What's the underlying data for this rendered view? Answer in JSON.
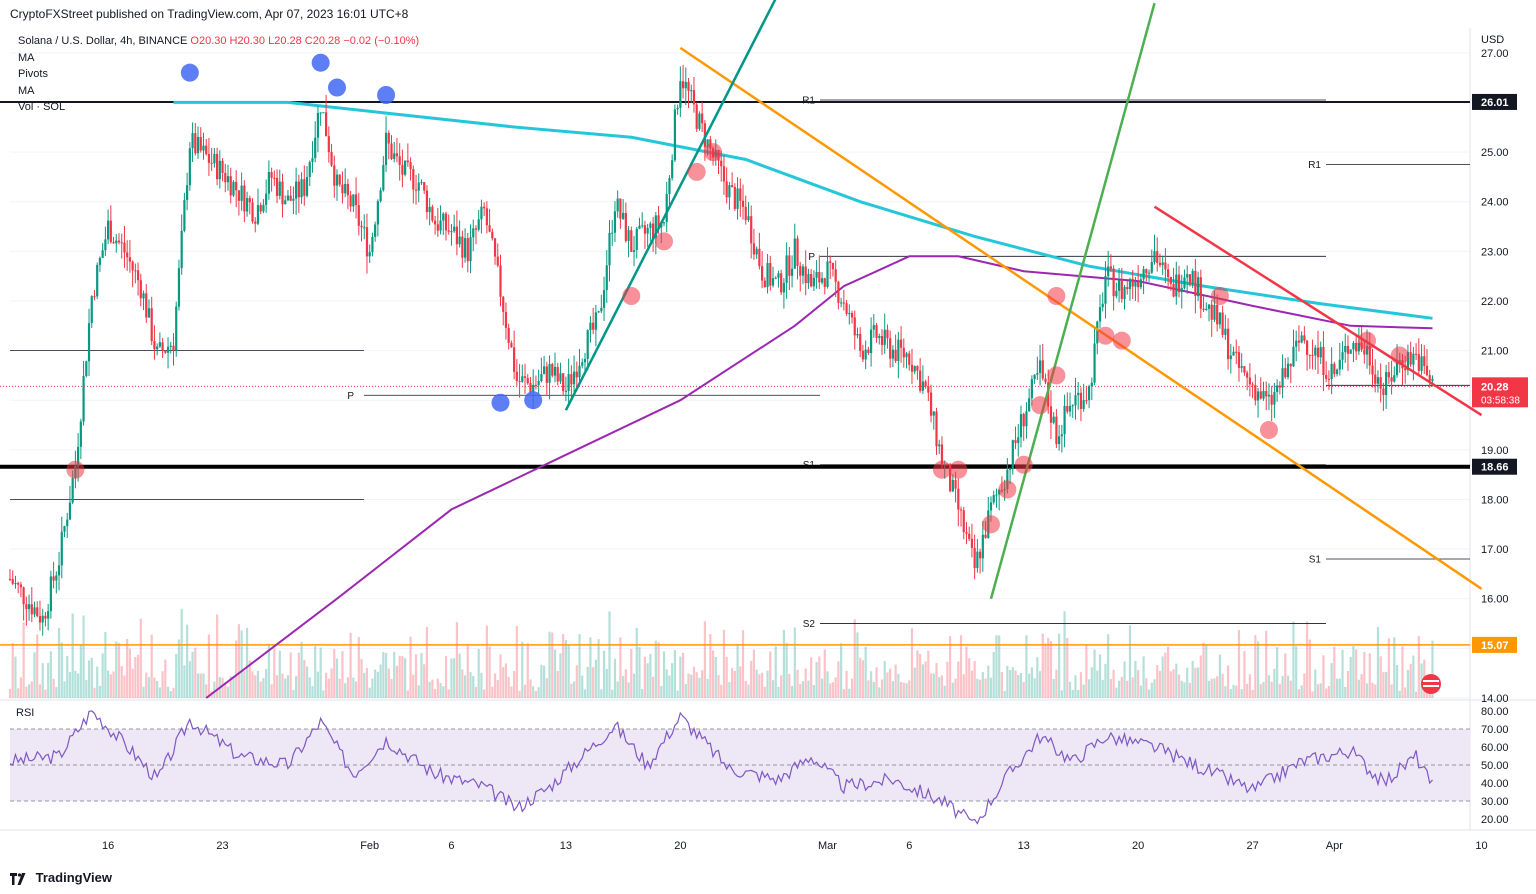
{
  "header": {
    "published": "CryptoFXStreet published on TradingView.com, Apr 07, 2023 16:01 UTC+8"
  },
  "footer": {
    "brand": "TradingView"
  },
  "legend": {
    "symbol": "Solana / U.S. Dollar, 4h, BINANCE",
    "ohlc": "O20.30  H20.30  L20.28  C20.28  −0.02 (−0.10%)",
    "indicators": [
      "MA",
      "Pivots",
      "MA",
      "Vol · SOL"
    ]
  },
  "colors": {
    "up": "#089981",
    "down": "#f23645",
    "ma_fast": "#9c27b0",
    "ma_slow": "#26c6da",
    "orange": "#ff9800",
    "green": "#4caf50",
    "teal": "#009688",
    "rsi": "#7e57c2",
    "rsi_band": "#ede7f6"
  },
  "chart_data": [
    {
      "type": "candlestick",
      "symbol": "SOLUSD",
      "timeframe": "4h",
      "currency": "USD",
      "y_axis_label": "USD",
      "ylim": [
        14.0,
        27.5
      ],
      "y_ticks": [
        14.0,
        15.0,
        16.0,
        17.0,
        18.0,
        19.0,
        20.0,
        21.0,
        22.0,
        23.0,
        24.0,
        25.0,
        26.0,
        27.0
      ],
      "x_ticks": [
        "16",
        "23",
        "Feb",
        "6",
        "13",
        "20",
        "Mar",
        "6",
        "13",
        "20",
        "27",
        "Apr",
        "10"
      ],
      "last_price": {
        "value": "20.28",
        "countdown": "03:58:38"
      },
      "price_labels": [
        {
          "value": 26.01,
          "text": "26.01",
          "color": "#131722"
        },
        {
          "value": 18.66,
          "text": "18.66",
          "color": "#131722"
        },
        {
          "value": 15.07,
          "text": "15.07",
          "color": "#ff9800"
        }
      ],
      "pivot_labels": {
        "feb": [
          {
            "name": "P",
            "value": 20.1
          }
        ],
        "mar": [
          {
            "name": "R1",
            "value": 26.05
          },
          {
            "name": "P",
            "value": 22.9
          },
          {
            "name": "S1",
            "value": 18.7
          },
          {
            "name": "S2",
            "value": 15.5
          }
        ],
        "apr": [
          {
            "name": "R1",
            "value": 24.75
          },
          {
            "name": "S1",
            "value": 16.8
          }
        ]
      },
      "price_path": [
        [
          "2023-01-10",
          16.4
        ],
        [
          "2023-01-12",
          15.6
        ],
        [
          "2023-01-13",
          16.8
        ],
        [
          "2023-01-14",
          18.7
        ],
        [
          "2023-01-15",
          22.1
        ],
        [
          "2023-01-16",
          23.5
        ],
        [
          "2023-01-17",
          23.0
        ],
        [
          "2023-01-18",
          22.3
        ],
        [
          "2023-01-19",
          20.9
        ],
        [
          "2023-01-20",
          21.2
        ],
        [
          "2023-01-21",
          25.2
        ],
        [
          "2023-01-22",
          24.9
        ],
        [
          "2023-01-23",
          24.6
        ],
        [
          "2023-01-24",
          24.2
        ],
        [
          "2023-01-25",
          23.8
        ],
        [
          "2023-01-26",
          24.5
        ],
        [
          "2023-01-27",
          24.0
        ],
        [
          "2023-01-28",
          24.3
        ],
        [
          "2023-01-29",
          26.0
        ],
        [
          "2023-01-30",
          24.3
        ],
        [
          "2023-01-31",
          23.9
        ],
        [
          "2023-02-01",
          23.0
        ],
        [
          "2023-02-02",
          25.2
        ],
        [
          "2023-02-03",
          24.6
        ],
        [
          "2023-02-04",
          24.4
        ],
        [
          "2023-02-05",
          23.6
        ],
        [
          "2023-02-06",
          23.4
        ],
        [
          "2023-02-07",
          23.0
        ],
        [
          "2023-02-08",
          23.8
        ],
        [
          "2023-02-09",
          22.2
        ],
        [
          "2023-02-10",
          20.4
        ],
        [
          "2023-02-11",
          20.3
        ],
        [
          "2023-02-12",
          20.6
        ],
        [
          "2023-02-13",
          20.2
        ],
        [
          "2023-02-14",
          21.0
        ],
        [
          "2023-02-15",
          21.6
        ],
        [
          "2023-02-16",
          24.0
        ],
        [
          "2023-02-17",
          23.1
        ],
        [
          "2023-02-18",
          23.4
        ],
        [
          "2023-02-19",
          23.6
        ],
        [
          "2023-02-20",
          26.6
        ],
        [
          "2023-02-21",
          25.7
        ],
        [
          "2023-02-22",
          24.9
        ],
        [
          "2023-02-23",
          24.2
        ],
        [
          "2023-02-24",
          23.8
        ],
        [
          "2023-02-25",
          22.6
        ],
        [
          "2023-02-26",
          22.3
        ],
        [
          "2023-02-27",
          23.0
        ],
        [
          "2023-02-28",
          22.3
        ],
        [
          "2023-03-01",
          22.6
        ],
        [
          "2023-03-02",
          22.0
        ],
        [
          "2023-03-03",
          21.0
        ],
        [
          "2023-03-04",
          21.3
        ],
        [
          "2023-03-05",
          21.0
        ],
        [
          "2023-03-06",
          20.9
        ],
        [
          "2023-03-07",
          20.2
        ],
        [
          "2023-03-08",
          18.8
        ],
        [
          "2023-03-09",
          17.8
        ],
        [
          "2023-03-10",
          16.6
        ],
        [
          "2023-03-11",
          17.8
        ],
        [
          "2023-03-12",
          18.6
        ],
        [
          "2023-03-13",
          19.7
        ],
        [
          "2023-03-14",
          20.6
        ],
        [
          "2023-03-15",
          19.3
        ],
        [
          "2023-03-16",
          20.0
        ],
        [
          "2023-03-17",
          20.2
        ],
        [
          "2023-03-18",
          22.5
        ],
        [
          "2023-03-19",
          22.2
        ],
        [
          "2023-03-20",
          22.5
        ],
        [
          "2023-03-21",
          23.0
        ],
        [
          "2023-03-22",
          22.2
        ],
        [
          "2023-03-23",
          22.7
        ],
        [
          "2023-03-24",
          22.0
        ],
        [
          "2023-03-25",
          21.5
        ],
        [
          "2023-03-26",
          20.7
        ],
        [
          "2023-03-27",
          20.3
        ],
        [
          "2023-03-28",
          19.9
        ],
        [
          "2023-03-29",
          20.5
        ],
        [
          "2023-03-30",
          21.3
        ],
        [
          "2023-03-31",
          20.9
        ],
        [
          "2023-04-01",
          20.5
        ],
        [
          "2023-04-02",
          21.2
        ],
        [
          "2023-04-03",
          21.0
        ],
        [
          "2023-04-04",
          20.2
        ],
        [
          "2023-04-05",
          20.8
        ],
        [
          "2023-04-06",
          20.9
        ],
        [
          "2023-04-07",
          20.28
        ]
      ],
      "ma_fast_path": [
        [
          "2023-01-22",
          14.0
        ],
        [
          "2023-01-30",
          16.0
        ],
        [
          "2023-02-06",
          17.8
        ],
        [
          "2023-02-13",
          18.9
        ],
        [
          "2023-02-20",
          20.0
        ],
        [
          "2023-02-27",
          21.5
        ],
        [
          "2023-03-02",
          22.3
        ],
        [
          "2023-03-06",
          22.9
        ],
        [
          "2023-03-09",
          22.9
        ],
        [
          "2023-03-13",
          22.6
        ],
        [
          "2023-03-20",
          22.4
        ],
        [
          "2023-03-27",
          21.9
        ],
        [
          "2023-04-02",
          21.5
        ],
        [
          "2023-04-07",
          21.45
        ]
      ],
      "ma_slow_path": [
        [
          "2023-01-20",
          26.0
        ],
        [
          "2023-01-27",
          26.0
        ],
        [
          "2023-02-03",
          25.75
        ],
        [
          "2023-02-10",
          25.5
        ],
        [
          "2023-02-17",
          25.3
        ],
        [
          "2023-02-24",
          24.85
        ],
        [
          "2023-03-03",
          24.0
        ],
        [
          "2023-03-10",
          23.3
        ],
        [
          "2023-03-17",
          22.7
        ],
        [
          "2023-03-24",
          22.3
        ],
        [
          "2023-03-31",
          21.95
        ],
        [
          "2023-04-07",
          21.65
        ]
      ],
      "trendlines": [
        {
          "color": "#ff9800",
          "from": [
            "2023-02-20",
            27.1
          ],
          "to": [
            "2023-04-10",
            16.2
          ]
        },
        {
          "color": "#009688",
          "from": [
            "2023-02-13",
            19.8
          ],
          "to": [
            "2023-02-26",
            28.2
          ]
        },
        {
          "color": "#4caf50",
          "from": [
            "2023-03-11",
            16.0
          ],
          "to": [
            "2023-03-21",
            28.0
          ]
        },
        {
          "color": "#f23645",
          "from": [
            "2023-03-21",
            23.9
          ],
          "to": [
            "2023-04-10",
            19.7
          ]
        }
      ],
      "markers_blue": [
        [
          "2023-01-21",
          26.6
        ],
        [
          "2023-01-29",
          26.8
        ],
        [
          "2023-01-30",
          26.3
        ],
        [
          "2023-02-02",
          26.15
        ],
        [
          "2023-02-09",
          19.95
        ],
        [
          "2023-02-11",
          20.0
        ]
      ],
      "markers_red": [
        [
          "2023-01-14",
          18.6
        ],
        [
          "2023-02-17",
          22.1
        ],
        [
          "2023-02-19",
          23.2
        ],
        [
          "2023-02-21",
          24.6
        ],
        [
          "2023-02-22",
          25.0
        ],
        [
          "2023-03-08",
          18.6
        ],
        [
          "2023-03-09",
          18.6
        ],
        [
          "2023-03-12",
          18.2
        ],
        [
          "2023-03-13",
          18.7
        ],
        [
          "2023-03-14",
          19.9
        ],
        [
          "2023-03-15",
          20.5
        ],
        [
          "2023-03-15",
          22.1
        ],
        [
          "2023-03-18",
          21.3
        ],
        [
          "2023-03-19",
          21.2
        ],
        [
          "2023-03-25",
          22.1
        ],
        [
          "2023-03-28",
          19.4
        ],
        [
          "2023-04-03",
          21.2
        ],
        [
          "2023-04-05",
          20.9
        ],
        [
          "2023-03-11",
          17.5
        ]
      ],
      "volume_seed": 7
    },
    {
      "type": "line",
      "name": "RSI",
      "ylim": [
        15,
        85
      ],
      "y_ticks": [
        20.0,
        30.0,
        40.0,
        50.0,
        60.0,
        70.0,
        80.0
      ],
      "band": [
        30,
        70
      ],
      "rsi_path": [
        [
          "2023-01-10",
          52
        ],
        [
          "2023-01-13",
          55
        ],
        [
          "2023-01-15",
          80
        ],
        [
          "2023-01-17",
          62
        ],
        [
          "2023-01-19",
          42
        ],
        [
          "2023-01-21",
          75
        ],
        [
          "2023-01-24",
          55
        ],
        [
          "2023-01-27",
          50
        ],
        [
          "2023-01-29",
          74
        ],
        [
          "2023-01-31",
          45
        ],
        [
          "2023-02-02",
          64
        ],
        [
          "2023-02-05",
          45
        ],
        [
          "2023-02-08",
          38
        ],
        [
          "2023-02-10",
          26
        ],
        [
          "2023-02-12",
          38
        ],
        [
          "2023-02-16",
          72
        ],
        [
          "2023-02-18",
          50
        ],
        [
          "2023-02-20",
          77
        ],
        [
          "2023-02-23",
          48
        ],
        [
          "2023-02-26",
          42
        ],
        [
          "2023-02-28",
          55
        ],
        [
          "2023-03-02",
          38
        ],
        [
          "2023-03-05",
          42
        ],
        [
          "2023-03-08",
          30
        ],
        [
          "2023-03-10",
          17
        ],
        [
          "2023-03-12",
          44
        ],
        [
          "2023-03-14",
          66
        ],
        [
          "2023-03-16",
          52
        ],
        [
          "2023-03-18",
          66
        ],
        [
          "2023-03-21",
          60
        ],
        [
          "2023-03-24",
          48
        ],
        [
          "2023-03-27",
          36
        ],
        [
          "2023-03-30",
          52
        ],
        [
          "2023-04-02",
          58
        ],
        [
          "2023-04-04",
          40
        ],
        [
          "2023-04-06",
          55
        ],
        [
          "2023-04-07",
          38
        ]
      ]
    }
  ]
}
